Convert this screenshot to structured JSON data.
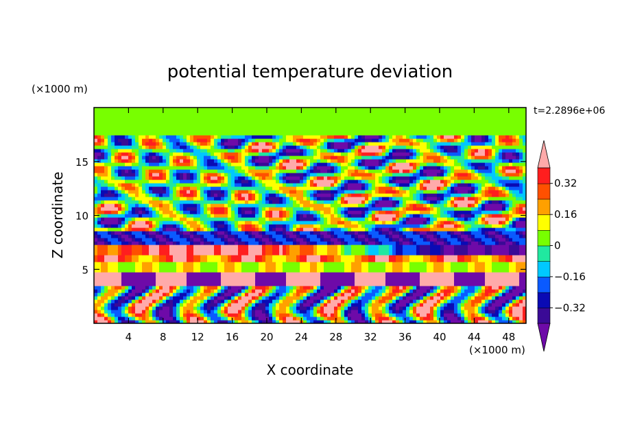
{
  "chart_data": {
    "type": "heatmap",
    "title": "potential temperature deviation",
    "xlabel": "X coordinate",
    "ylabel": "Z coordinate",
    "x_unit": "(×1000 m)",
    "y_unit": "(×1000 m)",
    "time_label": "t=2.2896e+06",
    "xlim": [
      0,
      50
    ],
    "ylim": [
      0,
      20
    ],
    "x_ticks": [
      4,
      8,
      12,
      16,
      20,
      24,
      28,
      32,
      36,
      40,
      44,
      48
    ],
    "y_ticks": [
      5,
      10,
      15
    ],
    "colorbar": {
      "levels": [
        -0.4,
        -0.32,
        -0.24,
        -0.16,
        -0.08,
        0,
        0.08,
        0.16,
        0.24,
        0.32,
        0.4
      ],
      "labels": [
        "0.32",
        "0.16",
        "0",
        "−0.16",
        "−0.32"
      ],
      "label_values": [
        0.32,
        0.16,
        0,
        -0.16,
        -0.32
      ],
      "colors": [
        "#6e0aa8",
        "#3a0a96",
        "#0a0ab4",
        "#0a5aff",
        "#00c8ff",
        "#20e8a0",
        "#78ff00",
        "#ffff00",
        "#ffa000",
        "#ff5000",
        "#ff1e1e",
        "#ffaaaa"
      ],
      "extend": "both"
    }
  }
}
